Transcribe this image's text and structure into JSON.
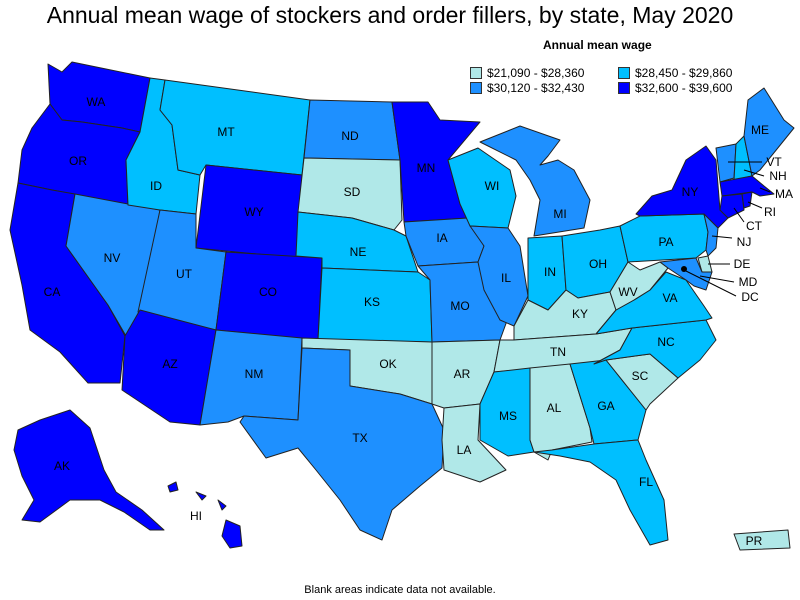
{
  "title": "Annual mean wage of stockers and order fillers, by state, May 2020",
  "legend": {
    "title": "Annual mean wage",
    "items": [
      {
        "label": "$21,090 - $28,360",
        "color": "#b0e8e8"
      },
      {
        "label": "$28,450 - $29,860",
        "color": "#00bfff"
      },
      {
        "label": "$30,120 - $32,430",
        "color": "#1e90ff"
      },
      {
        "label": "$32,600 - $39,600",
        "color": "#0000ff"
      }
    ]
  },
  "footnote": "Blank areas indicate data not available.",
  "states": {
    "WA": "WA",
    "OR": "OR",
    "CA": "CA",
    "NV": "NV",
    "ID": "ID",
    "MT": "MT",
    "WY": "WY",
    "UT": "UT",
    "AZ": "AZ",
    "CO": "CO",
    "NM": "NM",
    "ND": "ND",
    "SD": "SD",
    "NE": "NE",
    "KS": "KS",
    "OK": "OK",
    "TX": "TX",
    "MN": "MN",
    "IA": "IA",
    "MO": "MO",
    "AR": "AR",
    "LA": "LA",
    "WI": "WI",
    "IL": "IL",
    "MI": "MI",
    "IN": "IN",
    "OH": "OH",
    "KY": "KY",
    "TN": "TN",
    "MS": "MS",
    "AL": "AL",
    "GA": "GA",
    "FL": "FL",
    "SC": "SC",
    "NC": "NC",
    "VA": "VA",
    "WV": "WV",
    "PA": "PA",
    "NY": "NY",
    "ME": "ME",
    "VT": "VT",
    "NH": "NH",
    "MA": "MA",
    "RI": "RI",
    "CT": "CT",
    "NJ": "NJ",
    "DE": "DE",
    "MD": "MD",
    "DC": "DC",
    "AK": "AK",
    "HI": "HI",
    "PR": "PR"
  }
}
